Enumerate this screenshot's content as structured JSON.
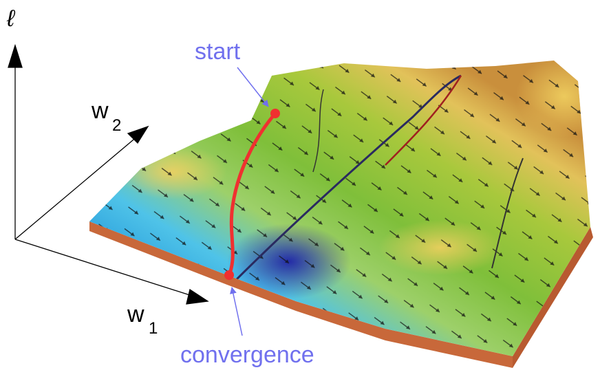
{
  "axes": {
    "loss": "ℓ",
    "w2": {
      "letter": "w",
      "subscript": "2"
    },
    "w1": {
      "letter": "w",
      "subscript": "1"
    }
  },
  "annotations": {
    "start": "start",
    "end": "convergence"
  }
}
